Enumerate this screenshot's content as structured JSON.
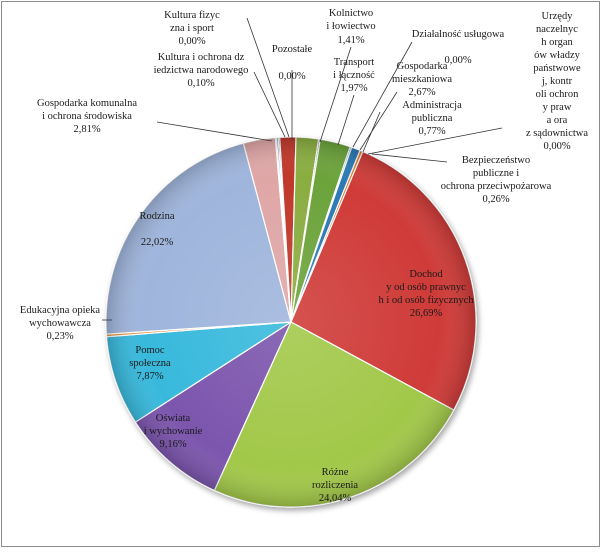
{
  "chart_data": {
    "type": "pie",
    "title": "",
    "legend": "none",
    "slices": [
      {
        "label": "Pozostałe",
        "value": 0.0,
        "value_text": "0,00%",
        "color": "#3f6ec4"
      },
      {
        "label": "Kolnictwo i łowiectwo",
        "value": 1.41,
        "value_text": "1,41%",
        "color": "#c0392b"
      },
      {
        "label": "Transport i łączność",
        "value": 1.97,
        "value_text": "1,97%",
        "color": "#8aad3f"
      },
      {
        "label": "Działalność usługowa",
        "value": 0.0,
        "value_text": "0,00%",
        "color": "#6a4aa0"
      },
      {
        "label": "Gospodarka mieszkaniowa",
        "value": 2.67,
        "value_text": "2,67%",
        "color": "#6ca33a"
      },
      {
        "label": "Urzędy naczelnych organów władzy państwowej, kontroli ochrony prawa oraz sądownictwa",
        "value": 0.0,
        "value_text": "0,00%",
        "color": "#2f8fbf"
      },
      {
        "label": "Administracja publiczna",
        "value": 0.77,
        "value_text": "0,77%",
        "color": "#2b79b5"
      },
      {
        "label": "Bezpieczeństwo publiczne i ochrona przeciwpożarowa",
        "value": 0.26,
        "value_text": "0,26%",
        "color": "#e07b2e"
      },
      {
        "label": "Dochody od osób prawnych i od osób fizycznych",
        "value": 26.69,
        "value_text": "26,69%",
        "color": "#cf3a37"
      },
      {
        "label": "Różne rozliczenia",
        "value": 24.04,
        "value_text": "24,04%",
        "color": "#a2c84a"
      },
      {
        "label": "Oświata i wychowanie",
        "value": 9.16,
        "value_text": "9,16%",
        "color": "#7b55ad"
      },
      {
        "label": "Pomoc społeczna",
        "value": 7.87,
        "value_text": "7,87%",
        "color": "#39b9dc"
      },
      {
        "label": "Edukacyjna opieka wychowawcza",
        "value": 0.23,
        "value_text": "0,23%",
        "color": "#e58f39"
      },
      {
        "label": "Rodzina",
        "value": 22.02,
        "value_text": "22,02%",
        "color": "#9fb5dc"
      },
      {
        "label": "Gospodarka komunalna i ochrona środowiska",
        "value": 2.81,
        "value_text": "2,81%",
        "color": "#dfa6a6"
      },
      {
        "label": "Kultura i ochrona dziedzictwa narodowego",
        "value": 0.1,
        "value_text": "0,10%",
        "color": "#aaaaaa"
      },
      {
        "label": "Kultura fizyczna i sport",
        "value": 0.0,
        "value_text": "0,00%",
        "color": "#3b5f9e"
      }
    ]
  }
}
